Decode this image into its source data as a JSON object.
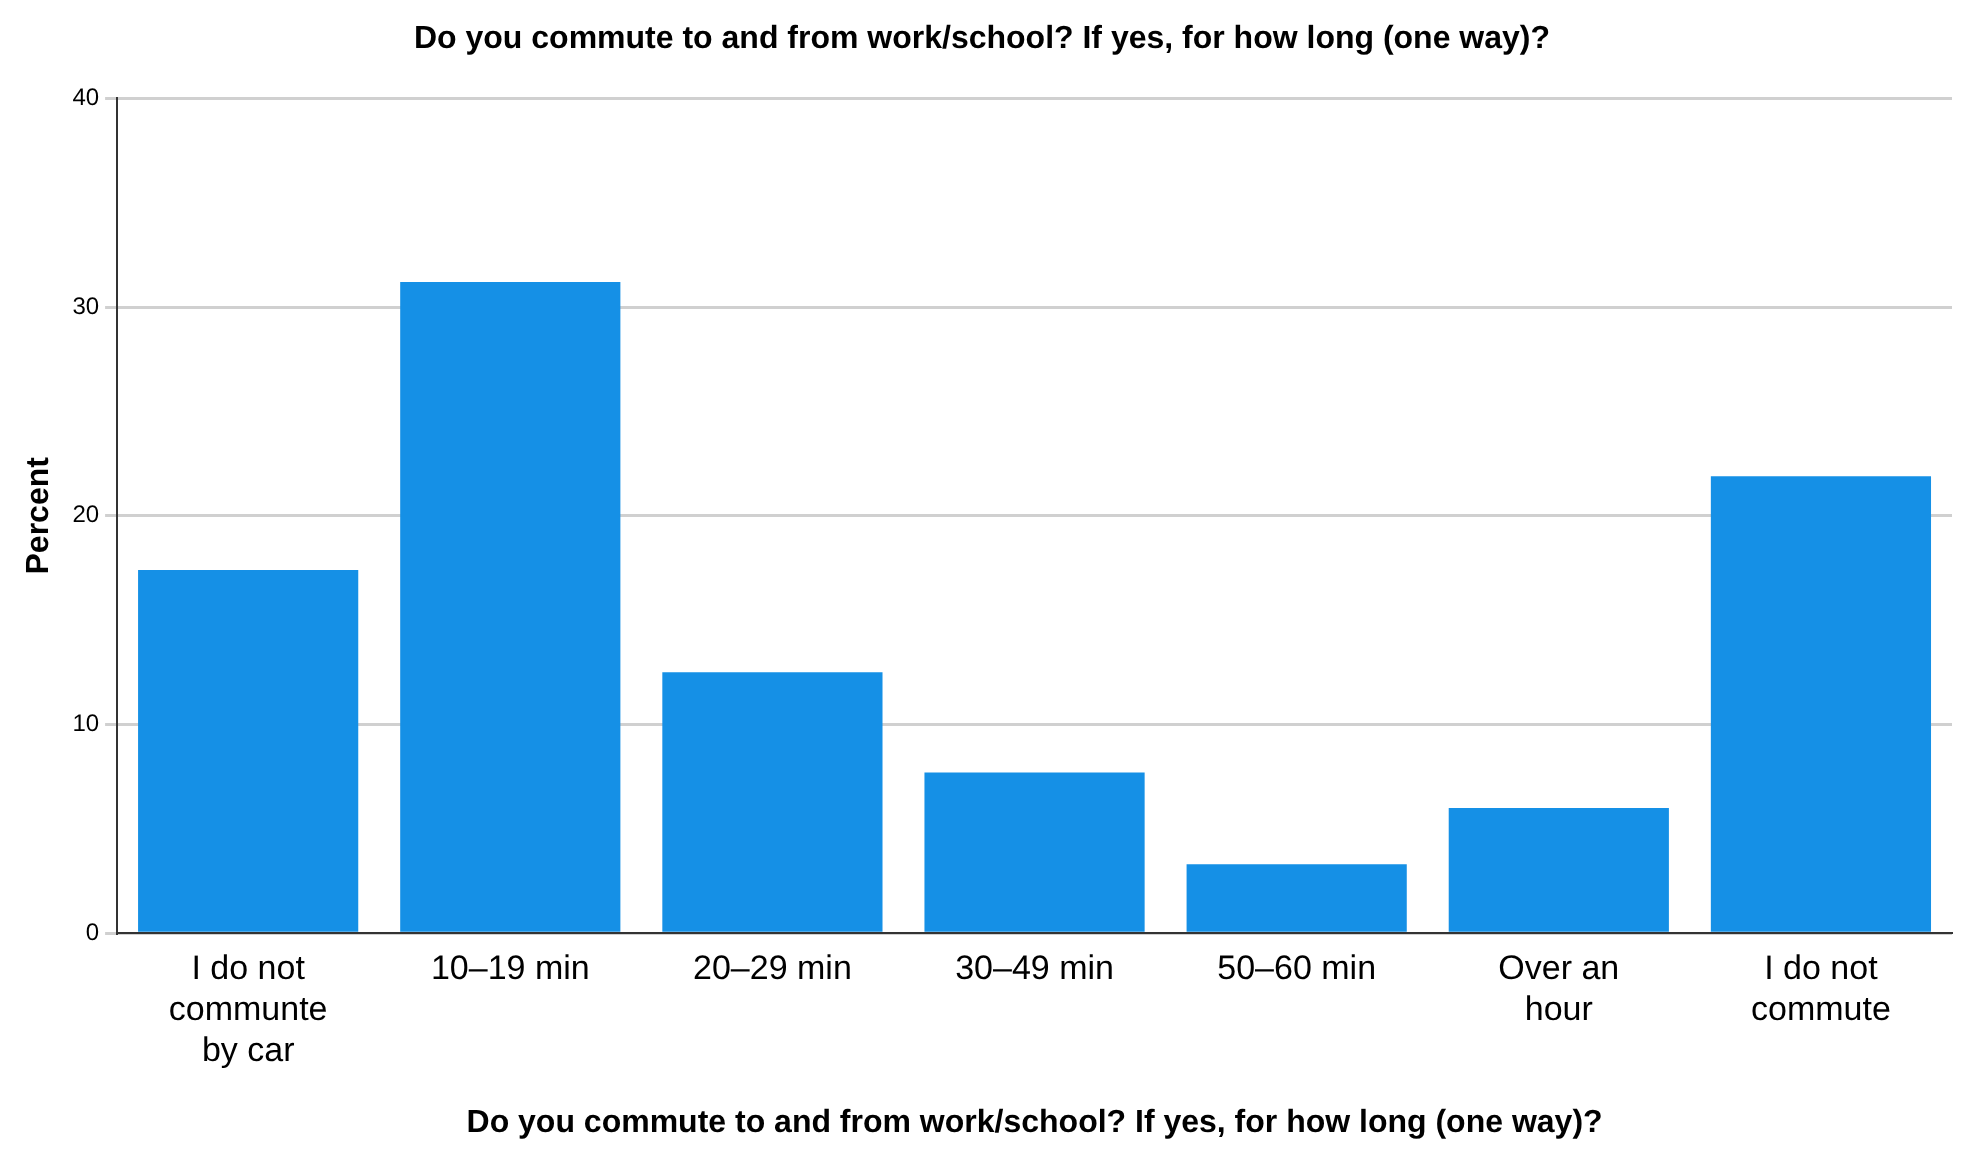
{
  "chart_data": {
    "type": "bar",
    "title": "Do you commute to and from work/school? If yes, for how long (one way)?",
    "xlabel": "Do you commute to and from work/school? If yes, for how long (one way)?",
    "ylabel": "Percent",
    "categories": [
      "I do not communte by car",
      "10–19 min",
      "20–29 min",
      "30–49 min",
      "50–60 min",
      "Over an hour",
      "I do not commute"
    ],
    "values": [
      17.4,
      31.2,
      12.5,
      7.7,
      3.3,
      6.0,
      21.9
    ],
    "color": "#1590e6",
    "ylim": [
      0,
      40
    ],
    "yticks": [
      0,
      10,
      20,
      30,
      40
    ],
    "grid": "y"
  }
}
